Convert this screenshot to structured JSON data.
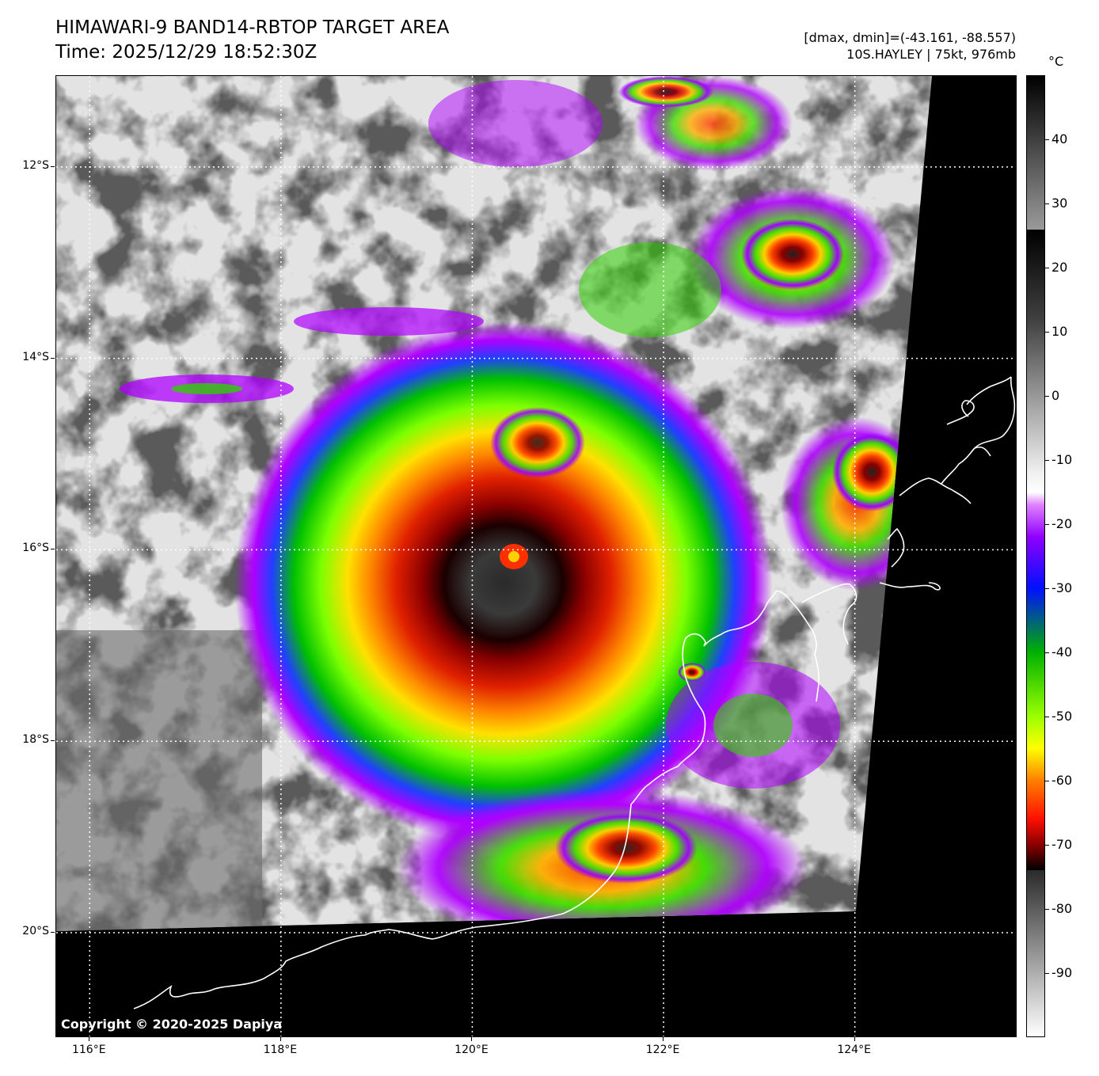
{
  "header": {
    "title_line1": "HIMAWARI-9 BAND14-RBTOP TARGET AREA",
    "title_line2": "Time: 2025/12/29 18:52:30Z",
    "range_text": "[dmax, dmin]=(-43.161, -88.557)",
    "storm_text": "10S.HAYLEY | 75kt, 976mb"
  },
  "map": {
    "lat_labels": [
      "12°S",
      "14°S",
      "16°S",
      "18°S",
      "20°S"
    ],
    "lon_labels": [
      "116°E",
      "118°E",
      "120°E",
      "122°E",
      "124°E"
    ],
    "lat_values": [
      -12,
      -14,
      -16,
      -18,
      -20
    ],
    "lon_values": [
      116,
      118,
      120,
      122,
      124
    ],
    "lon_range": [
      115.65,
      125.7
    ],
    "lat_range": [
      -21.1,
      -11.05
    ],
    "copyright": "Copyright © 2020-2025 Dapiya",
    "colors": {
      "ocean_background": "#000000",
      "coastline": "#ffffff",
      "gridline": "#ffffff"
    }
  },
  "colorbar": {
    "unit": "°C",
    "tick_labels": [
      "40",
      "30",
      "20",
      "10",
      "0",
      "-10",
      "-20",
      "-30",
      "-40",
      "-50",
      "-60",
      "-70",
      "-80",
      "-90"
    ],
    "tick_values": [
      40,
      30,
      20,
      10,
      0,
      -10,
      -20,
      -30,
      -40,
      -50,
      -60,
      -70,
      -80,
      -90
    ],
    "value_range": [
      -100,
      50
    ]
  }
}
